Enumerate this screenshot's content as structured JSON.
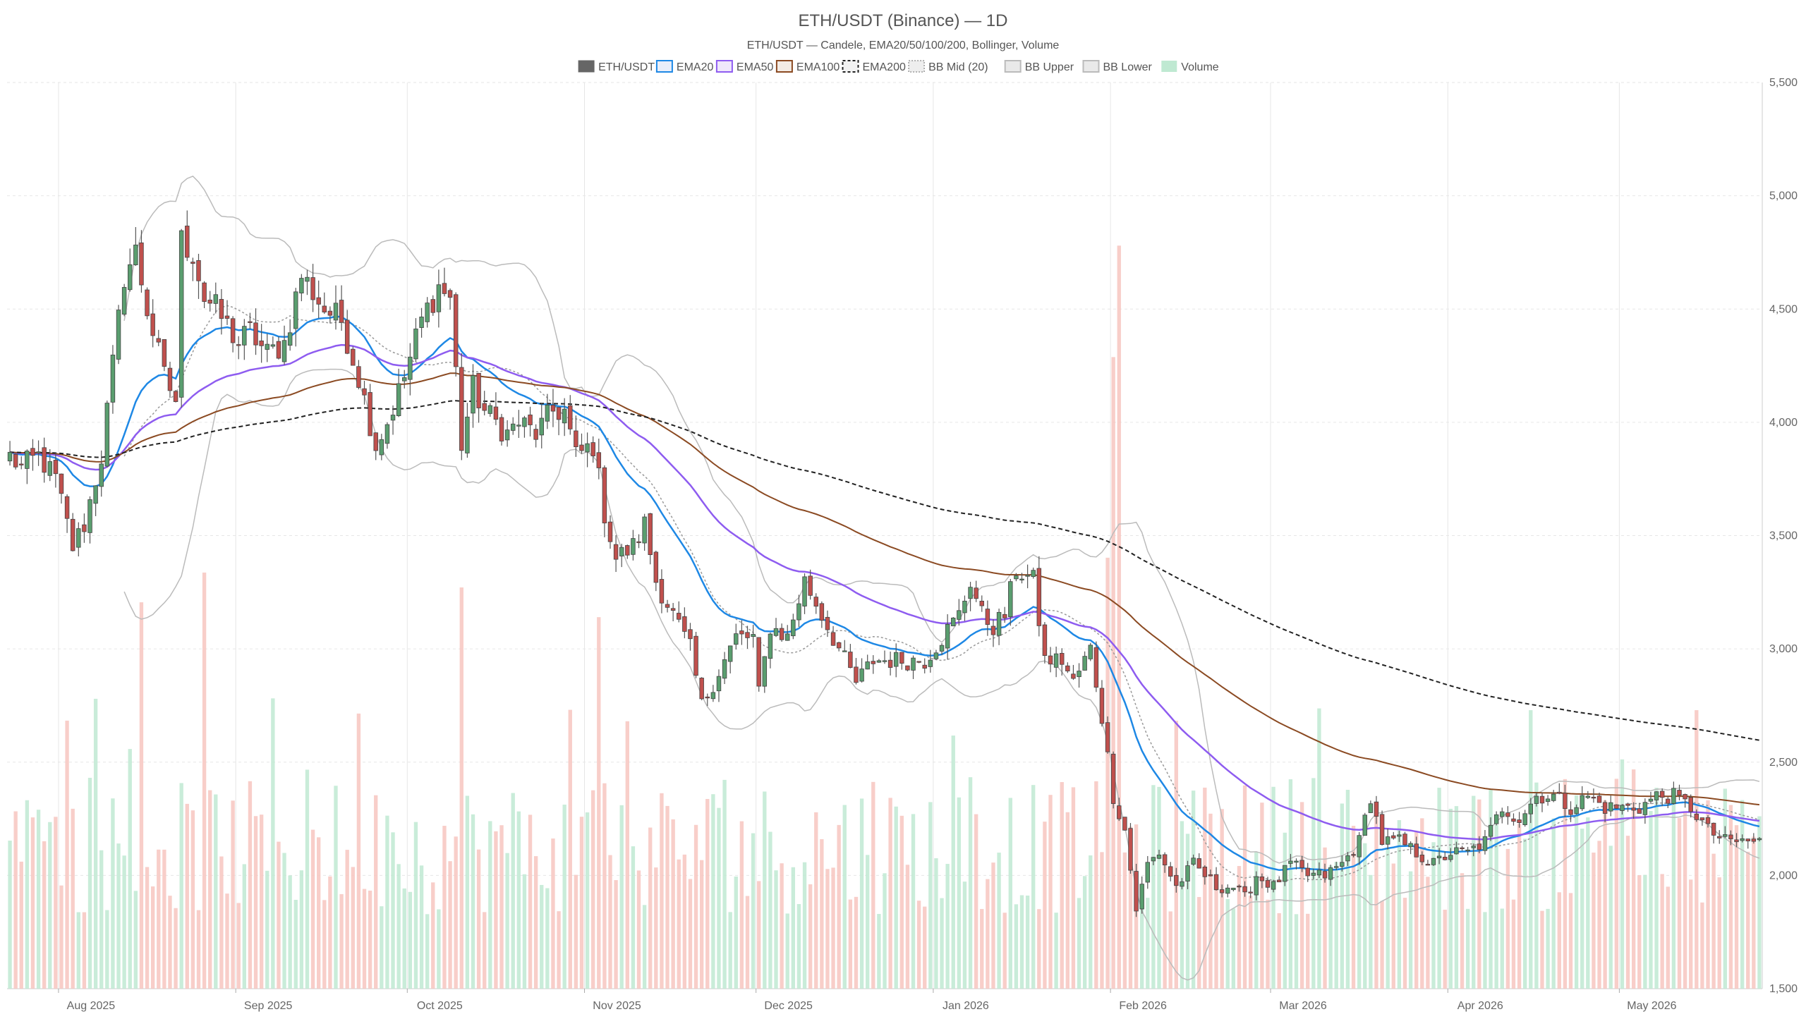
{
  "chart_data": {
    "type": "candlestick",
    "title": "ETH/USDT (Binance) — 1D",
    "subtitle": "ETH/USDT — Candele, EMA20/50/100/200, Bollinger, Volume",
    "legend": [
      {
        "name": "ETH/USDT",
        "color": "#666666",
        "style": "solid-fill"
      },
      {
        "name": "EMA20",
        "color": "#1e88e5",
        "style": "line"
      },
      {
        "name": "EMA50",
        "color": "#8e5cf0",
        "style": "line"
      },
      {
        "name": "EMA100",
        "color": "#8b4a22",
        "style": "line"
      },
      {
        "name": "EMA200",
        "color": "#222222",
        "style": "dashed"
      },
      {
        "name": "BB Mid (20)",
        "color": "#999999",
        "style": "dotted"
      },
      {
        "name": "BB Upper",
        "color": "#bbbbbb",
        "style": "line"
      },
      {
        "name": "BB Lower",
        "color": "#bbbbbb",
        "style": "line"
      },
      {
        "name": "Volume",
        "color": "#bfe9d2",
        "style": "fill"
      }
    ],
    "legend_position": "top-center",
    "y_axis": {
      "position": "right",
      "min": 1500,
      "max": 5500,
      "ticks": [
        "1,500",
        "2,000",
        "2,500",
        "3,000",
        "3,500",
        "4,000",
        "4,500",
        "5,000",
        "5,500"
      ],
      "tick_values": [
        1500,
        2000,
        2500,
        3000,
        3500,
        4000,
        4500,
        5000,
        5500
      ]
    },
    "x_axis": {
      "start": "2025-07-23",
      "end": "2026-05-25",
      "labels": [
        {
          "date": "2025-08-01",
          "label": "Aug 2025"
        },
        {
          "date": "2025-09-01",
          "label": "Sep 2025"
        },
        {
          "date": "2025-10-01",
          "label": "Oct 2025"
        },
        {
          "date": "2025-11-01",
          "label": "Nov 2025"
        },
        {
          "date": "2025-12-01",
          "label": "Dec 2025"
        },
        {
          "date": "2026-01-01",
          "label": "Jan 2026"
        },
        {
          "date": "2026-02-01",
          "label": "Feb 2026"
        },
        {
          "date": "2026-03-01",
          "label": "Mar 2026"
        },
        {
          "date": "2026-04-01",
          "label": "Apr 2026"
        },
        {
          "date": "2026-05-01",
          "label": "May 2026"
        }
      ]
    },
    "grid": true,
    "colors": {
      "up": "#5a9e6f",
      "down": "#c0504d",
      "vol_up": "#bfe9d2",
      "vol_down": "#f7c6c0"
    },
    "close_anchors": [
      [
        "2025-07-23",
        3850
      ],
      [
        "2025-07-25",
        3800
      ],
      [
        "2025-07-28",
        3850
      ],
      [
        "2025-07-31",
        3750
      ],
      [
        "2025-08-03",
        3450
      ],
      [
        "2025-08-05",
        3550
      ],
      [
        "2025-08-08",
        3850
      ],
      [
        "2025-08-10",
        4250
      ],
      [
        "2025-08-12",
        4650
      ],
      [
        "2025-08-14",
        4750
      ],
      [
        "2025-08-16",
        4500
      ],
      [
        "2025-08-19",
        4200
      ],
      [
        "2025-08-21",
        4100
      ],
      [
        "2025-08-22",
        4800
      ],
      [
        "2025-08-24",
        4750
      ],
      [
        "2025-08-26",
        4550
      ],
      [
        "2025-08-28",
        4500
      ],
      [
        "2025-09-01",
        4350
      ],
      [
        "2025-09-03",
        4400
      ],
      [
        "2025-09-06",
        4300
      ],
      [
        "2025-09-09",
        4350
      ],
      [
        "2025-09-12",
        4650
      ],
      [
        "2025-09-16",
        4500
      ],
      [
        "2025-09-19",
        4450
      ],
      [
        "2025-09-22",
        4200
      ],
      [
        "2025-09-25",
        3900
      ],
      [
        "2025-09-27",
        4000
      ],
      [
        "2025-09-30",
        4200
      ],
      [
        "2025-10-03",
        4450
      ],
      [
        "2025-10-06",
        4600
      ],
      [
        "2025-10-08",
        4550
      ],
      [
        "2025-10-10",
        3900
      ],
      [
        "2025-10-12",
        4150
      ],
      [
        "2025-10-14",
        4050
      ],
      [
        "2025-10-16",
        4000
      ],
      [
        "2025-10-18",
        3950
      ],
      [
        "2025-10-20",
        4000
      ],
      [
        "2025-10-23",
        3950
      ],
      [
        "2025-10-26",
        4050
      ],
      [
        "2025-10-28",
        4050
      ],
      [
        "2025-10-30",
        3850
      ],
      [
        "2025-11-02",
        3900
      ],
      [
        "2025-11-04",
        3600
      ],
      [
        "2025-11-06",
        3400
      ],
      [
        "2025-11-09",
        3450
      ],
      [
        "2025-11-11",
        3550
      ],
      [
        "2025-11-13",
        3300
      ],
      [
        "2025-11-16",
        3150
      ],
      [
        "2025-11-19",
        3000
      ],
      [
        "2025-11-21",
        2750
      ],
      [
        "2025-11-24",
        2900
      ],
      [
        "2025-11-27",
        3050
      ],
      [
        "2025-11-30",
        3050
      ],
      [
        "2025-12-01",
        2800
      ],
      [
        "2025-12-03",
        3100
      ],
      [
        "2025-12-06",
        3050
      ],
      [
        "2025-12-09",
        3300
      ],
      [
        "2025-12-12",
        3150
      ],
      [
        "2025-12-15",
        3000
      ],
      [
        "2025-12-18",
        2850
      ],
      [
        "2025-12-21",
        2950
      ],
      [
        "2025-12-24",
        2950
      ],
      [
        "2025-12-27",
        2950
      ],
      [
        "2025-12-30",
        2950
      ],
      [
        "2026-01-02",
        3050
      ],
      [
        "2026-01-05",
        3150
      ],
      [
        "2026-01-07",
        3300
      ],
      [
        "2026-01-09",
        3150
      ],
      [
        "2026-01-11",
        3100
      ],
      [
        "2026-01-13",
        3150
      ],
      [
        "2026-01-15",
        3350
      ],
      [
        "2026-01-18",
        3300
      ],
      [
        "2026-01-20",
        2950
      ],
      [
        "2026-01-23",
        2950
      ],
      [
        "2026-01-25",
        2850
      ],
      [
        "2026-01-28",
        3000
      ],
      [
        "2026-01-30",
        2700
      ],
      [
        "2026-02-01",
        2350
      ],
      [
        "2026-02-03",
        2200
      ],
      [
        "2026-02-05",
        1850
      ],
      [
        "2026-02-07",
        2050
      ],
      [
        "2026-02-09",
        2100
      ],
      [
        "2026-02-12",
        1950
      ],
      [
        "2026-02-15",
        2050
      ],
      [
        "2026-02-19",
        1950
      ],
      [
        "2026-02-22",
        1950
      ],
      [
        "2026-02-24",
        1900
      ],
      [
        "2026-02-26",
        2000
      ],
      [
        "2026-03-01",
        1950
      ],
      [
        "2026-03-04",
        2050
      ],
      [
        "2026-03-07",
        2000
      ],
      [
        "2026-03-10",
        2000
      ],
      [
        "2026-03-13",
        2050
      ],
      [
        "2026-03-16",
        2150
      ],
      [
        "2026-03-18",
        2350
      ],
      [
        "2026-03-20",
        2150
      ],
      [
        "2026-03-23",
        2150
      ],
      [
        "2026-03-26",
        2100
      ],
      [
        "2026-03-29",
        2050
      ],
      [
        "2026-04-01",
        2100
      ],
      [
        "2026-04-04",
        2100
      ],
      [
        "2026-04-07",
        2150
      ],
      [
        "2026-04-10",
        2300
      ],
      [
        "2026-04-13",
        2250
      ],
      [
        "2026-04-16",
        2350
      ],
      [
        "2026-04-19",
        2350
      ],
      [
        "2026-04-22",
        2300
      ],
      [
        "2026-04-25",
        2350
      ],
      [
        "2026-04-28",
        2300
      ],
      [
        "2026-05-01",
        2300
      ],
      [
        "2026-05-04",
        2300
      ],
      [
        "2026-05-07",
        2350
      ],
      [
        "2026-05-10",
        2350
      ],
      [
        "2026-05-13",
        2300
      ],
      [
        "2026-05-16",
        2200
      ],
      [
        "2026-05-19",
        2150
      ],
      [
        "2026-05-22",
        2150
      ],
      [
        "2026-05-25",
        2150
      ]
    ],
    "volume_spikes": [
      [
        "2025-08-15",
        0.52
      ],
      [
        "2025-08-26",
        0.56
      ],
      [
        "2025-10-10",
        0.54
      ],
      [
        "2025-11-03",
        0.5
      ],
      [
        "2026-02-01",
        0.85
      ],
      [
        "2026-02-02",
        1.0
      ],
      [
        "2026-01-31",
        0.58
      ]
    ],
    "ema_periods": [
      20,
      50,
      100,
      200
    ],
    "bollinger": {
      "period": 20,
      "std": 2
    }
  }
}
